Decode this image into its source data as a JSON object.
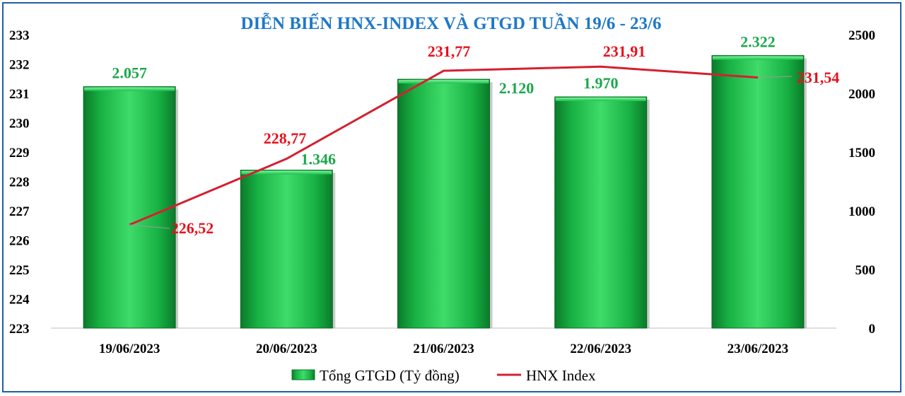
{
  "chart_data": {
    "type": "bar",
    "title": "DIỄN BIẾN HNX-INDEX VÀ GTGD TUẦN 19/6 - 23/6",
    "categories": [
      "19/06/2023",
      "20/06/2023",
      "21/06/2023",
      "22/06/2023",
      "23/06/2023"
    ],
    "series": [
      {
        "name": "Tổng GTGD (Tỷ đồng)",
        "type": "bar",
        "axis": "right",
        "values": [
          2057,
          1346,
          2120,
          1970,
          2322
        ],
        "labels": [
          "2.057",
          "1.346",
          "2.120",
          "1.970",
          "2.322"
        ],
        "color": "#12a83a"
      },
      {
        "name": "HNX Index",
        "type": "line",
        "axis": "left",
        "values": [
          226.52,
          228.77,
          231.77,
          231.91,
          231.54
        ],
        "labels": [
          "226,52",
          "228,77",
          "231,77",
          "231,91",
          "231,54"
        ],
        "color": "#d42030"
      }
    ],
    "y_left": {
      "min": 223,
      "max": 233,
      "ticks": [
        223,
        224,
        225,
        226,
        227,
        228,
        229,
        230,
        231,
        232,
        233
      ]
    },
    "y_right": {
      "min": 0,
      "max": 2500,
      "ticks": [
        0,
        500,
        1000,
        1500,
        2000,
        2500
      ]
    },
    "grid": false,
    "legend_position": "bottom"
  }
}
